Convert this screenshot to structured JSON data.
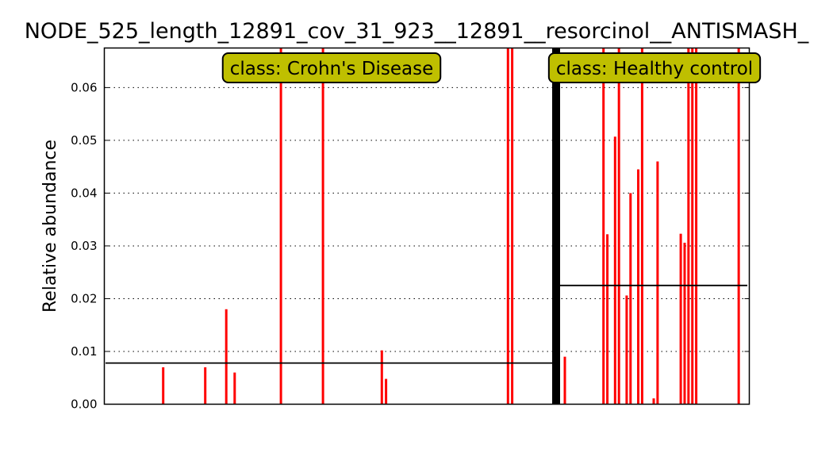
{
  "chart_data": {
    "type": "bar",
    "title": "NODE_525_length_12891_cov_31_923__12891__resorcinol__ANTISMASH_",
    "xlabel": "",
    "ylabel": "Relative abundance",
    "ylim": [
      0,
      0.0675
    ],
    "yticks": [
      "0.00",
      "0.01",
      "0.02",
      "0.03",
      "0.04",
      "0.05",
      "0.06"
    ],
    "grid": "horizontal-dotted",
    "groups": [
      {
        "label": "class: Crohn's Disease",
        "mean": 0.0078,
        "values": [
          0,
          0,
          0,
          0,
          0,
          0,
          0,
          0,
          0,
          0,
          0,
          0,
          0,
          0,
          0.007,
          0,
          0,
          0,
          0,
          0,
          0,
          0,
          0,
          0,
          0.007,
          0,
          0,
          0,
          0,
          0.018,
          0,
          0.006,
          0,
          0,
          0,
          0,
          0,
          0,
          0,
          0,
          0,
          0,
          0.0675,
          0,
          0,
          0,
          0,
          0,
          0,
          0,
          0,
          0,
          0.0675,
          0,
          0,
          0,
          0,
          0,
          0,
          0,
          0,
          0,
          0,
          0,
          0,
          0,
          0.0102,
          0.0048,
          0,
          0,
          0,
          0,
          0,
          0,
          0,
          0,
          0,
          0,
          0,
          0,
          0,
          0,
          0,
          0,
          0,
          0,
          0,
          0,
          0,
          0,
          0,
          0,
          0,
          0,
          0,
          0,
          0.0675,
          0.0675,
          0,
          0,
          0,
          0,
          0,
          0,
          0,
          0,
          0,
          0,
          0.0675,
          0,
          0
        ]
      },
      {
        "label": "class: Healthy control",
        "mean": 0.0225,
        "values": [
          0.009,
          0,
          0,
          0,
          0,
          0,
          0,
          0,
          0,
          0,
          0.0675,
          0.0322,
          0,
          0.0507,
          0.0675,
          0,
          0.0206,
          0.04,
          0,
          0.0445,
          0.0675,
          0,
          0,
          0.0011,
          0.046,
          0,
          0,
          0,
          0,
          0,
          0.0323,
          0.0306,
          0.0675,
          0.0675,
          0.0675,
          0,
          0,
          0,
          0,
          0,
          0,
          0,
          0,
          0,
          0,
          0.0675,
          0
        ]
      }
    ],
    "colors": {
      "bar": "#ff0000",
      "mean_line": "#000000",
      "separator": "#000000",
      "class_box": "#bfbf00"
    }
  }
}
